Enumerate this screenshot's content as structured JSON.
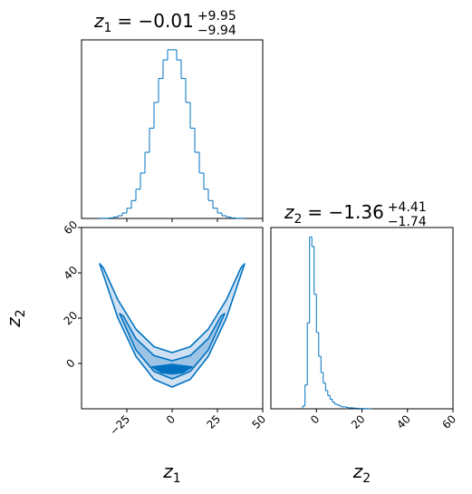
{
  "chart_data": [
    {
      "type": "histogram",
      "title": {
        "symbol": "z",
        "index": "1",
        "value": "= −0.01",
        "upper": "+9.95",
        "lower": "−9.94"
      },
      "bins": [
        -40,
        -37.5,
        -35,
        -32.5,
        -30,
        -27.5,
        -25,
        -22.5,
        -20,
        -17.5,
        -15,
        -12.5,
        -10,
        -7.5,
        -5,
        -2.5,
        0,
        2.5,
        5,
        7.5,
        10,
        12.5,
        15,
        17.5,
        20,
        22.5,
        25,
        27.5,
        30,
        32.5,
        35,
        37.5,
        40
      ],
      "counts": [
        1,
        1,
        3,
        8,
        16,
        32,
        60,
        105,
        172,
        267,
        389,
        531,
        682,
        823,
        932,
        992,
        992,
        932,
        823,
        682,
        531,
        389,
        267,
        172,
        105,
        60,
        32,
        16,
        8,
        3,
        1,
        1
      ],
      "color": "#0072c1",
      "xlim": [
        -50,
        50
      ],
      "ylim": [
        0,
        1050
      ],
      "xticks": [
        -25,
        0,
        25,
        50
      ]
    },
    {
      "type": "contour",
      "xlabel": {
        "symbol": "z",
        "index": "1"
      },
      "ylabel": {
        "symbol": "z",
        "index": "2"
      },
      "xlim": [
        -50,
        50
      ],
      "ylim": [
        -20,
        60
      ],
      "xticks": [
        {
          "value": -25,
          "label": "−25"
        },
        0,
        25,
        50
      ],
      "yticks": [
        0,
        20,
        40,
        60
      ],
      "line_color": "#0072c1",
      "contours": [
        {
          "fill": "#cfe1f2",
          "x": [
            -40,
            -30,
            -20,
            -10,
            0,
            10,
            20,
            30,
            40,
            38,
            30,
            20,
            10,
            0,
            -10,
            -20,
            -30,
            -38
          ],
          "y": [
            44,
            20.2,
            3.2,
            -7,
            -10.4,
            -7,
            3.2,
            20.2,
            44,
            42.3,
            28.2,
            15.2,
            7.4,
            4.8,
            7.4,
            15.2,
            28.2,
            42.3
          ]
        },
        {
          "fill": "#9dc4e6",
          "x": [
            -29,
            -20,
            -10,
            0,
            10,
            20,
            29,
            27,
            20,
            10,
            0,
            -10,
            -20,
            -27
          ],
          "y": [
            22,
            6,
            -3.5,
            -6.8,
            -3.5,
            6,
            22,
            21,
            11,
            3.5,
            1.2,
            3.5,
            11,
            21
          ]
        },
        {
          "fill": "#0072c1",
          "x": [
            -11,
            -6,
            0,
            6,
            11,
            6,
            0,
            -6
          ],
          "y": [
            -1.5,
            -4,
            -4.6,
            -4,
            -1.5,
            -1,
            -0.4,
            -1
          ]
        }
      ]
    },
    {
      "type": "histogram",
      "title": {
        "symbol": "z",
        "index": "2",
        "value": "= −1.36",
        "upper": "+4.41",
        "lower": "−1.74"
      },
      "xlabel": {
        "symbol": "z",
        "index": "2"
      },
      "bins": [
        -6,
        -5,
        -4,
        -3,
        -2,
        -1,
        0,
        1,
        2,
        3,
        4,
        5,
        6,
        7,
        8,
        9,
        10,
        11,
        12,
        13,
        14,
        15,
        16,
        17,
        18,
        19,
        20,
        21,
        22,
        23,
        24
      ],
      "counts": [
        3,
        25,
        90,
        180,
        170,
        120,
        80,
        55,
        38,
        27,
        19,
        14,
        10,
        7,
        5,
        4,
        3,
        2,
        2,
        1.5,
        1,
        1,
        0.8,
        0.6,
        0.5,
        0.4,
        0.3,
        0.2,
        0.2,
        0.1
      ],
      "color": "#0072c1",
      "xlim": [
        -20,
        60
      ],
      "ylim": [
        0,
        190
      ],
      "xticks": [
        0,
        20,
        40,
        60
      ]
    }
  ]
}
